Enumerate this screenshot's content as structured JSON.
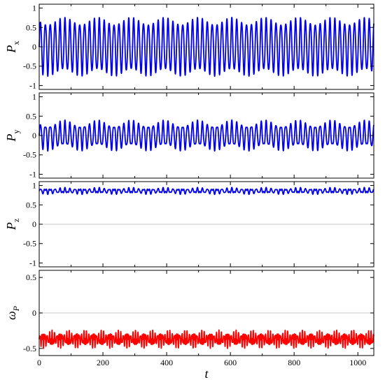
{
  "chart_data": [
    {
      "type": "line",
      "ylabel": "P",
      "ylabel_sub": "x",
      "xlim": [
        0,
        1050
      ],
      "ylim": [
        -1.1,
        1.1
      ],
      "yticks": [
        -1,
        -0.5,
        0,
        0.5,
        1
      ],
      "ytick_labels": [
        "-1",
        "-0.5",
        "0",
        "0.5",
        "1"
      ],
      "grid_zero_line": true,
      "color": "#0000ee",
      "signal": {
        "mean": 0.0,
        "carrier_amp": 0.66,
        "carrier_period": 15.4,
        "beat_amp": 0.1,
        "beat_period": 105
      }
    },
    {
      "type": "line",
      "ylabel": "P",
      "ylabel_sub": "y",
      "xlim": [
        0,
        1050
      ],
      "ylim": [
        -1.1,
        1.1
      ],
      "yticks": [
        -1,
        -0.5,
        0,
        0.5,
        1
      ],
      "ytick_labels": [
        "-1",
        "-0.5",
        "0",
        "0.5",
        "1"
      ],
      "grid_zero_line": true,
      "color": "#0000ee",
      "signal": {
        "mean": 0.0,
        "carrier_amp": 0.3,
        "carrier_period": 15.4,
        "beat_amp": 0.1,
        "beat_period": 105
      }
    },
    {
      "type": "line",
      "ylabel": "P",
      "ylabel_sub": "z",
      "xlim": [
        0,
        1050
      ],
      "ylim": [
        -1.1,
        1.1
      ],
      "yticks": [
        -1,
        -0.5,
        0,
        0.5,
        1
      ],
      "ytick_labels": [
        "-1",
        "-0.5",
        "0",
        "0.5",
        "1"
      ],
      "grid_zero_line": true,
      "color": "#0000ee",
      "signal": {
        "mean": 0.86,
        "carrier_amp": 0.05,
        "carrier_period": 15.4,
        "beat_amp": 0.04,
        "beat_period": 105
      }
    },
    {
      "type": "line",
      "ylabel": "ω",
      "ylabel_sub": "P",
      "xlabel": "t",
      "xlim": [
        0,
        1050
      ],
      "ylim": [
        -0.6,
        0.6
      ],
      "yticks": [
        -0.5,
        0,
        0.5
      ],
      "ytick_labels": [
        "-0.5",
        "0",
        "0.5"
      ],
      "xticks": [
        0,
        200,
        400,
        600,
        800,
        1000
      ],
      "xtick_labels": [
        "0",
        "200",
        "400",
        "600",
        "800",
        "1000"
      ],
      "grid_zero_line": true,
      "color": "#ff0000",
      "signal": {
        "mean": -0.37,
        "carrier_amp": 0.06,
        "carrier_period": 7.7,
        "beat_amp": 0.07,
        "beat_period": 52.5
      }
    }
  ]
}
